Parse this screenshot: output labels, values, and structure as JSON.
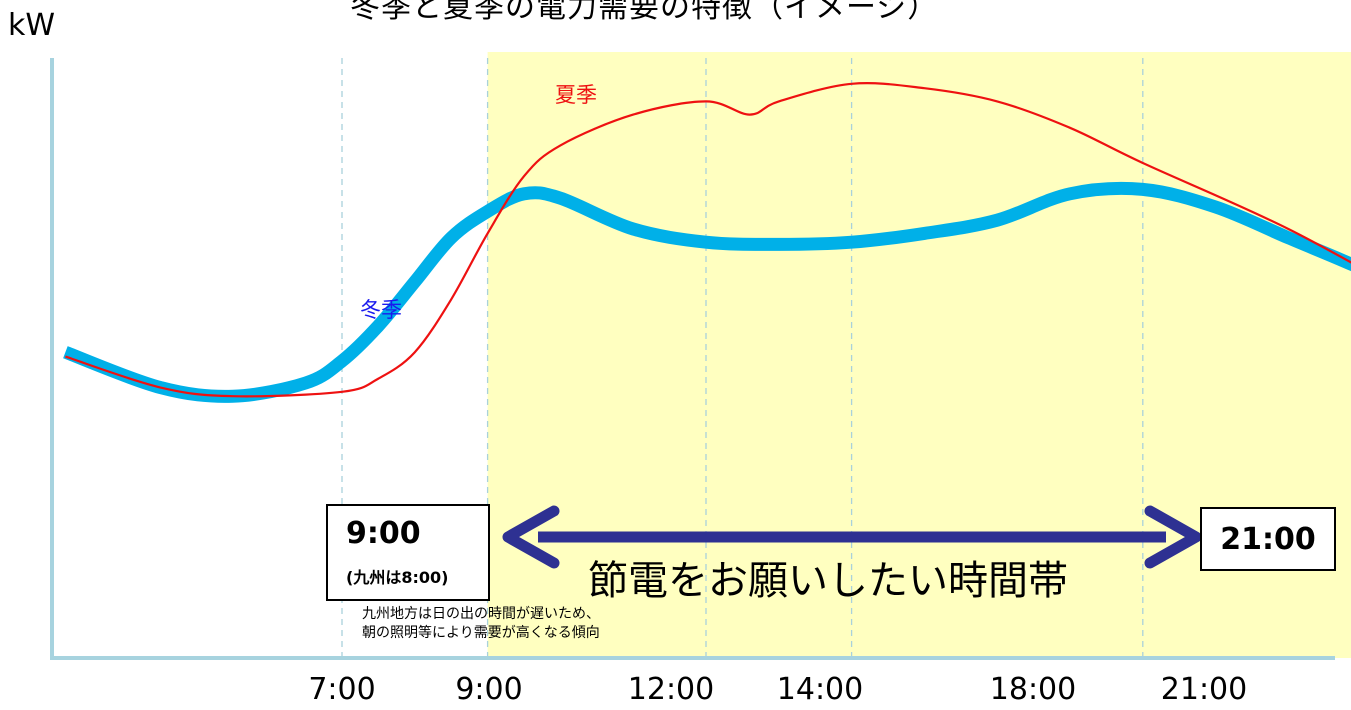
{
  "chart_data": {
    "type": "line",
    "title": "冬季と夏季の電力需要の特徴（イメージ）",
    "ylabel": "kW",
    "xlabel": "",
    "x_ticks": [
      7,
      9,
      12,
      14,
      18,
      21
    ],
    "x_tick_labels": [
      "7:00",
      "9:00",
      "12:00",
      "14:00",
      "18:00",
      "21:00"
    ],
    "xlim": [
      3,
      24.2
    ],
    "ylim": [
      0,
      100
    ],
    "grid": "vertical-dashed",
    "highlight_band": {
      "x_range": [
        9,
        21
      ],
      "color": "#ffffc0",
      "label": "節電をお願いしたい時間帯",
      "start_label": "9:00",
      "start_sublabel": "(九州は8:00)",
      "end_label": "21:00",
      "note_lines": [
        "九州地方は日の出の時間が遅いため、",
        "朝の照明等により需要が高くなる傾向"
      ]
    },
    "series": [
      {
        "name": "夏季",
        "color": "#ee1111",
        "x": [
          3.2,
          4.5,
          5.5,
          7,
          7.5,
          8,
          8.5,
          9,
          9.5,
          10,
          11,
          12,
          12.6,
          13,
          14,
          15,
          16,
          17,
          18,
          20,
          22,
          24
        ],
        "y": [
          36,
          29,
          27,
          28,
          31,
          37,
          49,
          64,
          77,
          84,
          91,
          94,
          91,
          94,
          98,
          97,
          94,
          88,
          80,
          65,
          47,
          30
        ]
      },
      {
        "name": "冬季",
        "color": "#00b0e8",
        "x": [
          3.2,
          4.5,
          5.5,
          6.5,
          7,
          7.5,
          8,
          8.5,
          9,
          9.5,
          10,
          11,
          12,
          13,
          14,
          15,
          16,
          17,
          18,
          19,
          20,
          21,
          22,
          23,
          24
        ],
        "y": [
          37,
          29,
          27,
          30,
          35,
          43,
          53,
          63,
          69,
          73,
          72,
          65,
          62,
          61.5,
          62,
          64,
          67,
          73,
          74,
          70,
          63,
          56,
          48,
          40,
          28
        ]
      }
    ],
    "series_label_positions": {
      "夏季": [
        12,
        94
      ],
      "冬季": [
        7.5,
        56
      ]
    }
  }
}
